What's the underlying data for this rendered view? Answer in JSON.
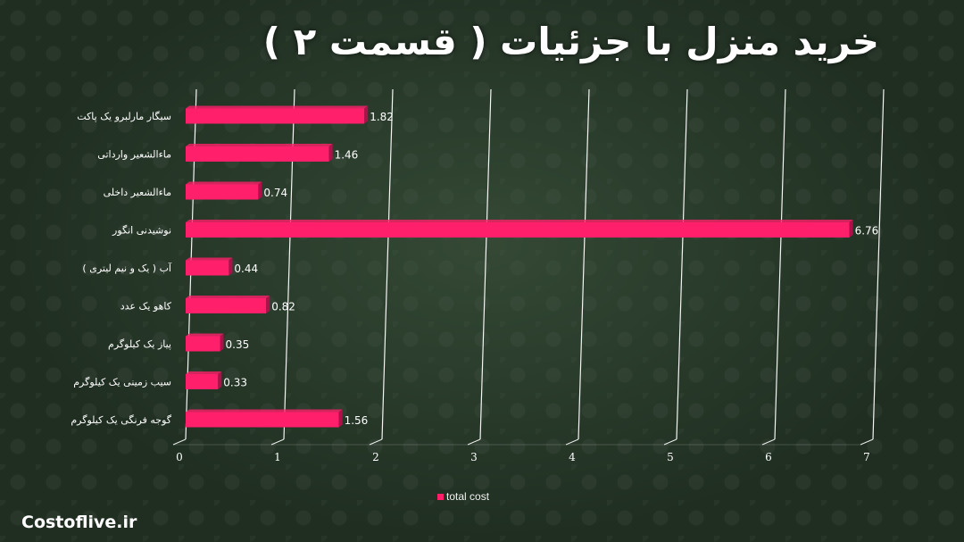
{
  "chart_data": {
    "type": "bar",
    "orientation": "horizontal",
    "title": "خرید منزل با جزئیات ( قسمت ۲ )",
    "xlabel": "",
    "ylabel": "",
    "categories": [
      "سیگار مارلبرو یک پاکت",
      "ماءالشعیر وارداتی",
      "ماءالشعیر داخلی",
      "نوشیدنی انگور",
      "آب ( یک و نیم لیتری )",
      "کاهو  یک عدد",
      "پیاز یک کیلوگرم",
      "سیب زمینی یک کیلوگرم",
      "گوجه فرنگی یک کیلوگرم"
    ],
    "series": [
      {
        "name": "total cost",
        "values": [
          1.82,
          1.46,
          0.74,
          6.76,
          0.44,
          0.82,
          0.35,
          0.33,
          1.56
        ],
        "data_labels": [
          "1.82",
          "1.46",
          "0.74",
          "6.76",
          "0.44",
          "0.82",
          "0.35",
          "0.33",
          "1.56"
        ]
      }
    ],
    "xlim": [
      0,
      7
    ],
    "xticks": [
      "0",
      "1",
      "2",
      "3",
      "4",
      "5",
      "6",
      "7"
    ],
    "grid": true,
    "legend_position": "bottom",
    "colors": {
      "bar": "#ff1f6a",
      "bar_dark": "#b0104a",
      "grid": "#ffffff",
      "text": "#ffffff"
    }
  },
  "watermark": "Costoflive.ir"
}
